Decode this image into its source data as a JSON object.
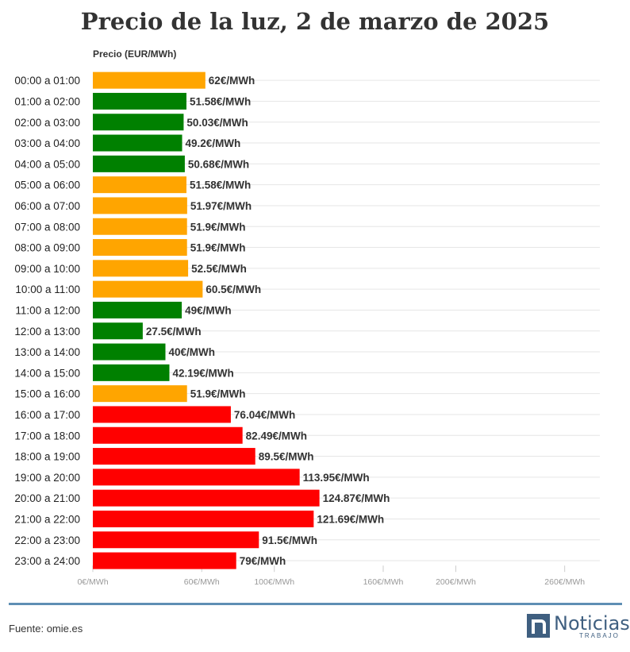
{
  "title": "Precio de la luz, 2 de marzo de 2025",
  "axis_title": "Precio (EUR/MWh)",
  "source": "Fuente: omie.es",
  "logo": {
    "word": "Noticias",
    "sub": "TRABAJO"
  },
  "colors": {
    "low": "#008000",
    "mid": "#ffa500",
    "high": "#ff0000",
    "brand": "#3f5f80"
  },
  "chart_data": {
    "type": "bar",
    "orientation": "horizontal",
    "title": "Precio de la luz, 2 de marzo de 2025",
    "xlabel": "Precio (EUR/MWh)",
    "xlim": [
      0,
      275
    ],
    "xticks": [
      {
        "value": 0,
        "label": "0€/MWh"
      },
      {
        "value": 60,
        "label": "60€/MWh"
      },
      {
        "value": 100,
        "label": "100€/MWh"
      },
      {
        "value": 160,
        "label": "160€/MWh"
      },
      {
        "value": 200,
        "label": "200€/MWh"
      },
      {
        "value": 260,
        "label": "260€/MWh"
      }
    ],
    "categories": [
      "00:00 a 01:00",
      "01:00 a 02:00",
      "02:00 a 03:00",
      "03:00 a 04:00",
      "04:00 a 05:00",
      "05:00 a 06:00",
      "06:00 a 07:00",
      "07:00 a 08:00",
      "08:00 a 09:00",
      "09:00 a 10:00",
      "10:00 a 11:00",
      "11:00 a 12:00",
      "12:00 a 13:00",
      "13:00 a 14:00",
      "14:00 a 15:00",
      "15:00 a 16:00",
      "16:00 a 17:00",
      "17:00 a 18:00",
      "18:00 a 19:00",
      "19:00 a 20:00",
      "20:00 a 21:00",
      "21:00 a 22:00",
      "22:00 a 23:00",
      "23:00 a 24:00"
    ],
    "values": [
      62,
      51.58,
      50.03,
      49.2,
      50.68,
      51.58,
      51.97,
      51.9,
      51.9,
      52.5,
      60.5,
      49,
      27.5,
      40,
      42.19,
      51.9,
      76.04,
      82.49,
      89.5,
      113.95,
      124.87,
      121.69,
      91.5,
      79
    ],
    "labels": [
      "62€/MWh",
      "51.58€/MWh",
      "50.03€/MWh",
      "49.2€/MWh",
      "50.68€/MWh",
      "51.58€/MWh",
      "51.97€/MWh",
      "51.9€/MWh",
      "51.9€/MWh",
      "52.5€/MWh",
      "60.5€/MWh",
      "49€/MWh",
      "27.5€/MWh",
      "40€/MWh",
      "42.19€/MWh",
      "51.9€/MWh",
      "76.04€/MWh",
      "82.49€/MWh",
      "89.5€/MWh",
      "113.95€/MWh",
      "124.87€/MWh",
      "121.69€/MWh",
      "91.5€/MWh",
      "79€/MWh"
    ],
    "bar_colors": [
      "mid",
      "low",
      "low",
      "low",
      "low",
      "mid",
      "mid",
      "mid",
      "mid",
      "mid",
      "mid",
      "low",
      "low",
      "low",
      "low",
      "mid",
      "high",
      "high",
      "high",
      "high",
      "high",
      "high",
      "high",
      "high"
    ],
    "grid": true
  }
}
